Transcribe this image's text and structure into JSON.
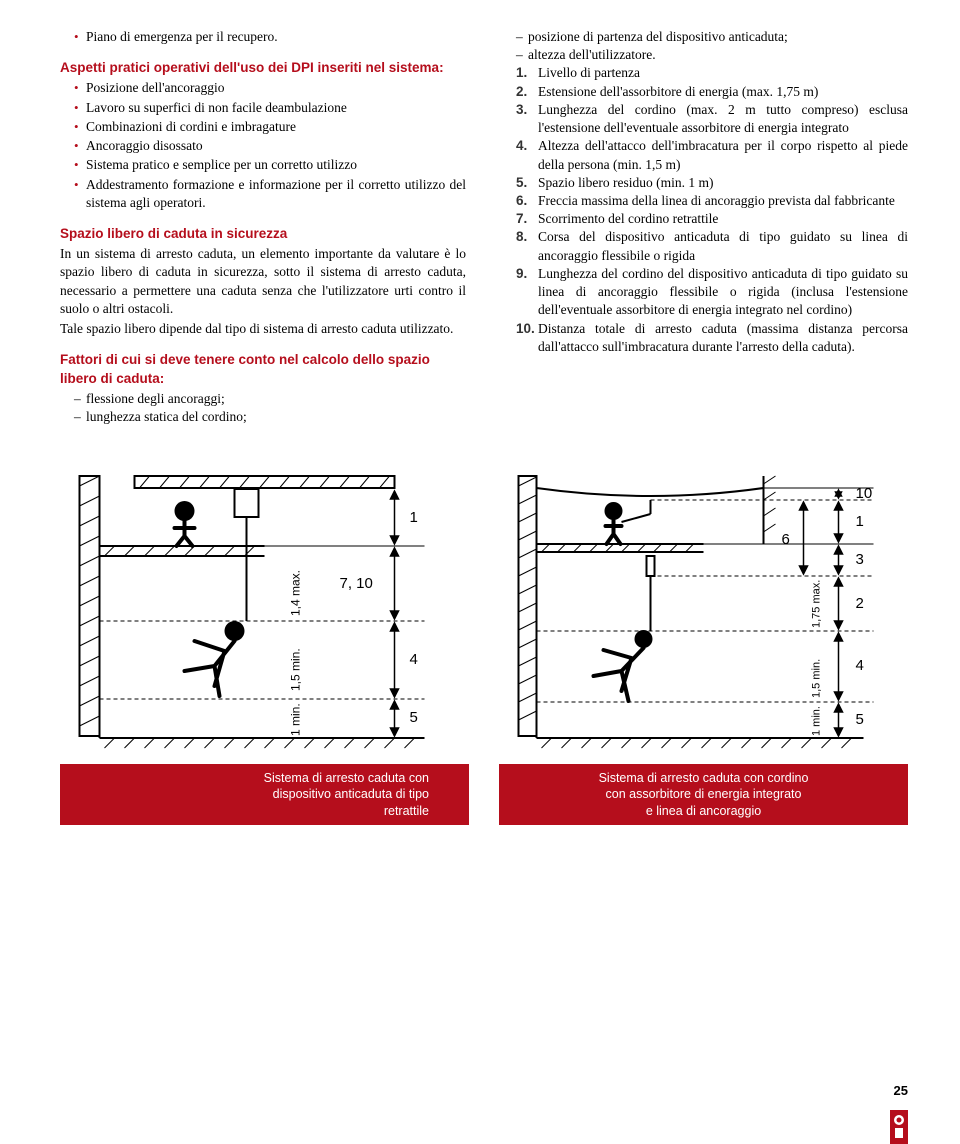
{
  "colors": {
    "accent": "#b50e1c",
    "text": "#000000",
    "bg": "#ffffff",
    "caption_text": "#ffffff"
  },
  "left_column": {
    "top_bullet": "Piano di emergenza per il recupero.",
    "heading1": "Aspetti pratici operativi dell'uso dei DPI inseriti nel sistema:",
    "bullets1": [
      "Posizione dell'ancoraggio",
      "Lavoro su superfici di non facile deambulazione",
      "Combinazioni di cordini e imbragature",
      "Ancoraggio disossato",
      "Sistema pratico e semplice per un corretto utilizzo",
      "Addestramento formazione e informazione per il corretto utilizzo del sistema agli operatori."
    ],
    "heading2": "Spazio libero di caduta in sicurezza",
    "para2": "In un sistema di arresto caduta, un elemento importante da valutare è lo spazio libero di caduta in sicurezza, sotto il sistema di arresto caduta, necessario a permettere una caduta senza che l'utilizzatore urti contro il suolo o altri ostacoli.",
    "para2b": "Tale spazio libero dipende dal tipo di sistema di arresto caduta utilizzato.",
    "heading3": "Fattori di cui si deve tenere conto nel calcolo dello spazio libero di caduta:",
    "dashes3": [
      "flessione degli ancoraggi;",
      "lunghezza statica del cordino;"
    ]
  },
  "right_column": {
    "top_dashes": [
      "posizione di partenza del dispositivo anticaduta;",
      "altezza dell'utilizzatore."
    ],
    "numbered": [
      {
        "n": "1.",
        "t": "Livello di partenza"
      },
      {
        "n": "2.",
        "t": "Estensione dell'assorbitore di energia (max. 1,75 m)"
      },
      {
        "n": "3.",
        "t": "Lunghezza del cordino (max. 2 m tutto compreso) esclusa l'estensione dell'eventuale assorbitore di energia integrato"
      },
      {
        "n": "4.",
        "t": "Altezza dell'attacco dell'imbracatura per il corpo rispetto al piede della persona (min. 1,5 m)"
      },
      {
        "n": "5.",
        "t": "Spazio libero residuo (min. 1 m)"
      },
      {
        "n": "6.",
        "t": "Freccia massima della linea di ancoraggio prevista dal fabbricante"
      },
      {
        "n": "7.",
        "t": "Scorrimento del cordino retrattile"
      },
      {
        "n": "8.",
        "t": "Corsa del dispositivo anticaduta di tipo guidato su linea di ancoraggio flessibile o rigida"
      },
      {
        "n": "9.",
        "t": "Lunghezza del cordino del dispositivo anticaduta di tipo guidato su linea di ancoraggio flessibile o rigida (inclusa l'estensione dell'eventuale assorbitore di energia integrato nel cordino)"
      },
      {
        "n": "10.",
        "t": "Distanza totale di arresto caduta (massima distanza percorsa dall'attacco sull'imbracatura durante l'arresto della caduta)."
      }
    ]
  },
  "captions": {
    "left": "Sistema di arresto caduta con\ndispositivo anticaduta di tipo\nretrattile",
    "right": "Sistema di arresto caduta con cordino\ncon assorbitore di energia integrato\ne linea di ancoraggio"
  },
  "figures": {
    "left": {
      "labels": [
        "1",
        "7, 10",
        "4",
        "5"
      ],
      "axis_labels": [
        "1,4 max.",
        "1,5 min.",
        "1 min."
      ]
    },
    "right": {
      "labels": [
        "1",
        "6",
        "10",
        "3",
        "2",
        "4",
        "5"
      ],
      "axis_labels": [
        "1,75 max.",
        "1,5 min.",
        "1 min."
      ]
    }
  },
  "page_number": "25"
}
